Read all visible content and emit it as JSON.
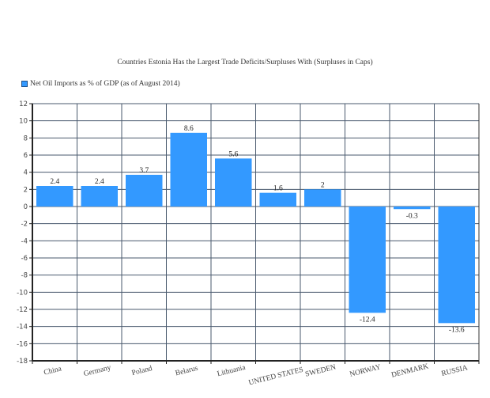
{
  "chart_data": {
    "type": "bar",
    "title": "Countries Estonia Has the Largest Trade Deficits/Surpluses With (Surpluses in Caps)",
    "legend": [
      "Net Oil Imports as % of GDP (as of August 2014)"
    ],
    "legend_position": "top-left",
    "categories": [
      "China",
      "Germany",
      "Poland",
      "Belarus",
      "Lithuania",
      "UNITED STATES",
      "SWEDEN",
      "NORWAY",
      "DENMARK",
      "RUSSIA"
    ],
    "series": [
      {
        "name": "Net Oil Imports as % of GDP (as of August 2014)",
        "values": [
          2.4,
          2.4,
          3.7,
          8.6,
          5.6,
          1.6,
          2,
          -12.4,
          -0.3,
          -13.6
        ]
      }
    ],
    "value_labels": [
      "2.4",
      "2.4",
      "3.7",
      "8.6",
      "5.6",
      "1.6",
      "2",
      "-12.4",
      "-0.3",
      "-13.6"
    ],
    "xlabel": "",
    "ylabel": "",
    "ylim": [
      -18,
      12
    ],
    "yticks": [
      12,
      10,
      8,
      6,
      4,
      2,
      0,
      -2,
      -4,
      -6,
      -8,
      -10,
      -12,
      -14,
      -16,
      -18
    ],
    "grid": true,
    "colors": {
      "bar": "#3399ff",
      "grid": "#4a5a6e",
      "axis": "#222222"
    }
  }
}
